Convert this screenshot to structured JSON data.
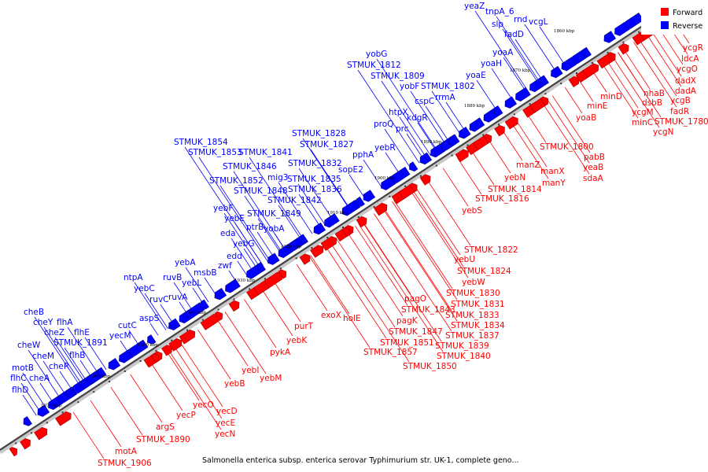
{
  "legend": {
    "forward": "Forward",
    "reverse": "Reverse"
  },
  "colors": {
    "forward": "#ff0000",
    "reverse": "#0000ff",
    "axis": "#555555"
  },
  "caption": "Salmonella enterica subsp. enterica serovar Typhimurium str. UK-1, complete geno...",
  "kbp_ticks": [
    "1860 kbp",
    "1870 kbp",
    "1880 kbp",
    "1890 kbp",
    "1900 kbp",
    "1910 kbp",
    "1920 kbp",
    "1930 kbp",
    "1940 kbp",
    "1950 kbp",
    "1960 kbp",
    "1970 kbp",
    "1980 kbp"
  ],
  "reverse_labels": [
    "yeaZ",
    "tnpA_6",
    "rnd",
    "slp",
    "vcgL",
    "fadD",
    "yoaA",
    "yoaH",
    "yobG",
    "STMUK_1812",
    "yoaE",
    "STMUK_1809",
    "yobF",
    "STMUK_1802",
    "cspC",
    "rrmA",
    "htpX",
    "kdgR",
    "proQ",
    "prc",
    "STMUK_1828",
    "STMUK_1827",
    "pphA",
    "STMUK_1854",
    "STMUK_1853",
    "STMUK_1841",
    "yebR",
    "STMUK_1846",
    "STMUK_1832",
    "sopE2",
    "mig3",
    "STMUK_1852",
    "STMUK_1835",
    "STMUK_1848",
    "STMUK_1836",
    "STMUK_1842",
    "yebF",
    "yebE",
    "STMUK_1849",
    "ptrB",
    "eda",
    "yobA",
    "yebG",
    "edd",
    "zwf",
    "yebA",
    "ntpA",
    "msbB",
    "ruvB",
    "yebL",
    "yebC",
    "ruvC",
    "ruvA",
    "aspS",
    "cheB",
    "cheY",
    "flhA",
    "cheZ",
    "flhE",
    "cutC",
    "cheW",
    "STMUK_1891",
    "yecM",
    "cheM",
    "flhB",
    "motB",
    "cheR",
    "flhC",
    "cheA",
    "flhD"
  ],
  "forward_labels": [
    "ycgR",
    "ldcA",
    "ycgO",
    "dadX",
    "dadA",
    "minD",
    "nhaB",
    "minE",
    "dsbB",
    "ycgB",
    "fadR",
    "ycgM",
    "minC",
    "STMUK_1780",
    "ycgN",
    "yoaB",
    "STMUK_1800",
    "pabB",
    "yeaB",
    "manZ",
    "sdaA",
    "manX",
    "yebN",
    "manY",
    "STMUK_1814",
    "STMUK_1816",
    "yebS",
    "STMUK_1822",
    "yebU",
    "STMUK_1824",
    "yebW",
    "STMUK_1830",
    "pagO",
    "STMUK_1831",
    "STMUK_1843",
    "STMUK_1833",
    "pagK",
    "STMUK_1834",
    "STMUK_1847",
    "STMUK_1837",
    "exoX",
    "holE",
    "purT",
    "STMUK_1851",
    "STMUK_1839",
    "yebK",
    "STMUK_1857",
    "STMUK_1840",
    "pykA",
    "STMUK_1850",
    "yebI",
    "yebM",
    "yebB",
    "yecO",
    "yecD",
    "yecP",
    "argS",
    "yecE",
    "yecN",
    "STMUK_1890",
    "motA",
    "STMUK_1906"
  ]
}
